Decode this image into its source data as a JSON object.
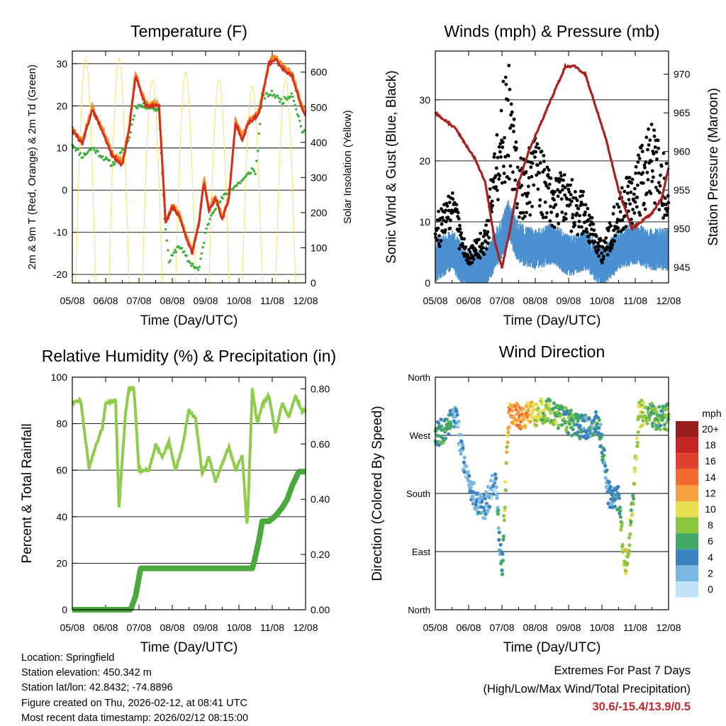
{
  "chart_data": [
    {
      "type": "line",
      "title": "Temperature (F)",
      "xlabel": "Time (Day/UTC)",
      "ylabel": "2m & 9m T (Red, Orange) & 2m Td (Green)",
      "y2label": "Solar Insolation (Yellow)",
      "x_ticks": [
        "05/08",
        "06/08",
        "07/08",
        "08/08",
        "09/08",
        "10/08",
        "11/08",
        "12/08"
      ],
      "ylim": [
        -22,
        33
      ],
      "y_ticks": [
        "-20",
        "-10",
        "0",
        "10",
        "20",
        "30"
      ],
      "y2lim": [
        0,
        660
      ],
      "y2_ticks": [
        "0",
        "100",
        "200",
        "300",
        "400",
        "500",
        "600"
      ],
      "grid": true,
      "colors": {
        "t2m": "#d62c20",
        "t9m": "#f28c28",
        "td": "#3cae3c",
        "solar": "#f5e16a"
      },
      "series": [
        {
          "name": "2m T",
          "x": [
            0,
            0.3,
            0.6,
            0.9,
            1.2,
            1.5,
            1.7,
            1.9,
            2.2,
            2.6,
            2.8,
            3.0,
            3.2,
            3.4,
            3.6,
            3.8,
            3.95,
            4.1,
            4.3,
            4.5,
            4.7,
            4.9,
            5.1,
            5.3,
            5.6,
            5.9,
            6.1,
            6.3,
            6.6,
            6.9,
            7.0
          ],
          "values": [
            14,
            11,
            19,
            14,
            8,
            6,
            14,
            27,
            20,
            20,
            -8,
            -4,
            -6,
            -11,
            -15,
            -8,
            2,
            -5,
            -2,
            -7,
            -2,
            16,
            12,
            16,
            18,
            30,
            31,
            29,
            27,
            19,
            18
          ]
        },
        {
          "name": "2m Td",
          "x": [
            0,
            0.3,
            0.6,
            0.9,
            1.2,
            1.5,
            1.7,
            1.9,
            2.2,
            2.6,
            2.75,
            2.9,
            3.2,
            3.5,
            3.8,
            4.0,
            4.2,
            4.5,
            4.7,
            4.9,
            5.2,
            5.4,
            5.5,
            5.7,
            6.0,
            6.3,
            6.6,
            6.9,
            7.0
          ],
          "values": [
            11,
            8,
            10,
            8,
            6,
            9,
            12,
            20,
            20,
            19,
            -5,
            -17,
            -13,
            -17,
            -19,
            -10,
            -5,
            -2,
            0,
            1,
            3,
            5,
            4,
            22,
            23,
            21,
            23,
            14,
            14
          ]
        },
        {
          "name": "Solar Insolation",
          "axis": "y2",
          "peaks_x": [
            0.4,
            1.4,
            2.4,
            3.4,
            4.4,
            5.4,
            6.4
          ],
          "peaks": [
            640,
            640,
            580,
            600,
            580,
            560,
            580
          ]
        }
      ]
    },
    {
      "type": "scatter",
      "title": "Winds (mph) & Pressure (mb)",
      "xlabel": "Time (Day/UTC)",
      "ylabel": "Sonic Wind & Gust (Blue, Black)",
      "y2label": "Station Pressure (Maroon)",
      "x_ticks": [
        "05/08",
        "06/08",
        "07/08",
        "08/08",
        "09/08",
        "10/08",
        "11/08",
        "12/08"
      ],
      "ylim": [
        0,
        38
      ],
      "y_ticks": [
        "0",
        "10",
        "20",
        "30"
      ],
      "y2lim": [
        943,
        973
      ],
      "y2_ticks": [
        "945",
        "950",
        "955",
        "960",
        "965",
        "970"
      ],
      "grid": true,
      "colors": {
        "wind": "#4a90d0",
        "gust": "#000000",
        "pressure": "#a82222"
      },
      "series": [
        {
          "name": "Sonic Wind",
          "x": [
            0,
            0.5,
            1.0,
            1.5,
            2.0,
            2.2,
            2.5,
            3.0,
            3.5,
            4.0,
            4.5,
            5.0,
            5.5,
            6.0,
            6.5,
            7.0
          ],
          "values": [
            4,
            6,
            2,
            3,
            8,
            11,
            7,
            6,
            7,
            5,
            6,
            3,
            6,
            7,
            6,
            6
          ]
        },
        {
          "name": "Gust",
          "x": [
            0,
            0.5,
            1.0,
            1.5,
            2.0,
            2.2,
            2.5,
            3.0,
            3.5,
            4.0,
            4.5,
            5.0,
            5.5,
            6.0,
            6.5,
            7.0
          ],
          "values": [
            8,
            12,
            4,
            7,
            24,
            27,
            15,
            18,
            14,
            13,
            11,
            5,
            11,
            15,
            20,
            14
          ]
        },
        {
          "name": "Station Pressure",
          "axis": "y2",
          "x": [
            0,
            0.3,
            0.6,
            0.9,
            1.2,
            1.5,
            1.8,
            2.0,
            2.2,
            2.5,
            2.8,
            3.1,
            3.4,
            3.7,
            3.9,
            4.2,
            4.5,
            4.8,
            5.1,
            5.5,
            5.9,
            6.2,
            6.5,
            6.8,
            7.0
          ],
          "values": [
            965,
            964,
            963,
            961,
            959,
            956,
            948,
            945,
            949,
            956,
            960,
            963,
            966,
            969,
            971,
            971,
            970,
            966,
            962,
            955,
            950,
            951,
            952,
            954,
            958
          ]
        }
      ]
    },
    {
      "type": "line",
      "title": "Relative Humidity (%) & Precipitation (in)",
      "xlabel": "Time (Day/UTC)",
      "ylabel": "Percent & Total Rainfall",
      "x_ticks": [
        "05/08",
        "06/08",
        "07/08",
        "08/08",
        "09/08",
        "10/08",
        "11/08",
        "12/08"
      ],
      "ylim": [
        0,
        100
      ],
      "y_ticks": [
        "0",
        "20",
        "40",
        "60",
        "80",
        "100"
      ],
      "y2lim": [
        0,
        0.842
      ],
      "y2_ticks": [
        "0.00",
        "0.20",
        "0.40",
        "0.60",
        "0.80"
      ],
      "grid": true,
      "colors": {
        "rh": "#8fcc4c",
        "precip": "#4aa83c"
      },
      "series": [
        {
          "name": "Relative Humidity",
          "x": [
            0,
            0.25,
            0.5,
            0.7,
            0.9,
            1.0,
            1.3,
            1.4,
            1.6,
            1.7,
            1.85,
            2.0,
            2.3,
            2.5,
            2.7,
            2.9,
            3.1,
            3.3,
            3.5,
            3.7,
            3.9,
            4.1,
            4.3,
            4.5,
            4.7,
            4.9,
            5.1,
            5.25,
            5.4,
            5.55,
            5.7,
            5.9,
            6.1,
            6.3,
            6.5,
            6.7,
            6.9,
            7.0
          ],
          "values": [
            89,
            90,
            61,
            70,
            78,
            89,
            90,
            44,
            85,
            95,
            95,
            60,
            60,
            71,
            66,
            72,
            60,
            70,
            86,
            82,
            58,
            66,
            55,
            63,
            70,
            60,
            66,
            35,
            95,
            80,
            88,
            92,
            76,
            89,
            83,
            92,
            85,
            86
          ]
        },
        {
          "name": "Total Precipitation",
          "axis": "y2",
          "x": [
            0,
            1.75,
            1.9,
            2.05,
            2.5,
            3.5,
            4.5,
            5.4,
            5.45,
            5.6,
            5.7,
            5.9,
            6.1,
            6.3,
            6.45,
            6.6,
            6.8,
            6.9,
            7.0
          ],
          "values": [
            0.0,
            0.0,
            0.05,
            0.15,
            0.15,
            0.15,
            0.15,
            0.15,
            0.17,
            0.25,
            0.32,
            0.32,
            0.34,
            0.37,
            0.4,
            0.45,
            0.5,
            0.5,
            0.5
          ]
        }
      ]
    },
    {
      "type": "scatter",
      "title": "Wind Direction",
      "xlabel": "Time (Day/UTC)",
      "ylabel": "Direction (Colored By Speed)",
      "x_ticks": [
        "05/08",
        "06/08",
        "07/08",
        "08/08",
        "09/08",
        "10/08",
        "11/08",
        "12/08"
      ],
      "y_ticks": [
        "North",
        "East",
        "South",
        "West",
        "North"
      ],
      "ylim": [
        0,
        360
      ],
      "grid": true,
      "colorbar": {
        "unit": "mph",
        "labels": [
          "20+",
          "18",
          "16",
          "14",
          "12",
          "10",
          "8",
          "6",
          "4",
          "2",
          "0"
        ],
        "colors": [
          "#9c1c1c",
          "#c72424",
          "#e0412a",
          "#f26a2e",
          "#f7a240",
          "#e8de50",
          "#8cc63f",
          "#42a866",
          "#3a82c0",
          "#7ab8e2",
          "#bfe2f5"
        ]
      },
      "series": [
        {
          "name": "Direction",
          "x": [
            0,
            0.3,
            0.6,
            0.9,
            1.2,
            1.5,
            1.8,
            2.0,
            2.2,
            2.5,
            2.8,
            3.1,
            3.4,
            3.7,
            4.0,
            4.3,
            4.6,
            4.9,
            5.2,
            5.5,
            5.7,
            5.9,
            6.1,
            6.3,
            6.6,
            6.9,
            7.0
          ],
          "values": [
            270,
            280,
            300,
            220,
            170,
            160,
            200,
            60,
            300,
            300,
            300,
            305,
            310,
            300,
            290,
            285,
            280,
            290,
            180,
            170,
            60,
            150,
            300,
            310,
            300,
            295,
            300
          ],
          "speeds": [
            5,
            6,
            3,
            2,
            4,
            3,
            2,
            5,
            12,
            13,
            11,
            9,
            8,
            7,
            6,
            5,
            4,
            5,
            3,
            4,
            10,
            7,
            9,
            8,
            6,
            7,
            7
          ]
        }
      ]
    }
  ],
  "footer": {
    "location": "Location: Springfield",
    "elevation": "Station elevation: 450.342 m",
    "latlon": "Station lat/lon: 42.8432; -74.8896",
    "created": "Figure created on Thu, 2026-02-12, at 08:41 UTC",
    "timestamp": "Most recent data timestamp: 2026/02/12 08:15:00",
    "extremes_title": "Extremes For Past 7 Days",
    "extremes_subtitle": "(High/Low/Max Wind/Total Precipitation)",
    "extremes_values": "30.6/-15.4/13.9/0.5"
  }
}
